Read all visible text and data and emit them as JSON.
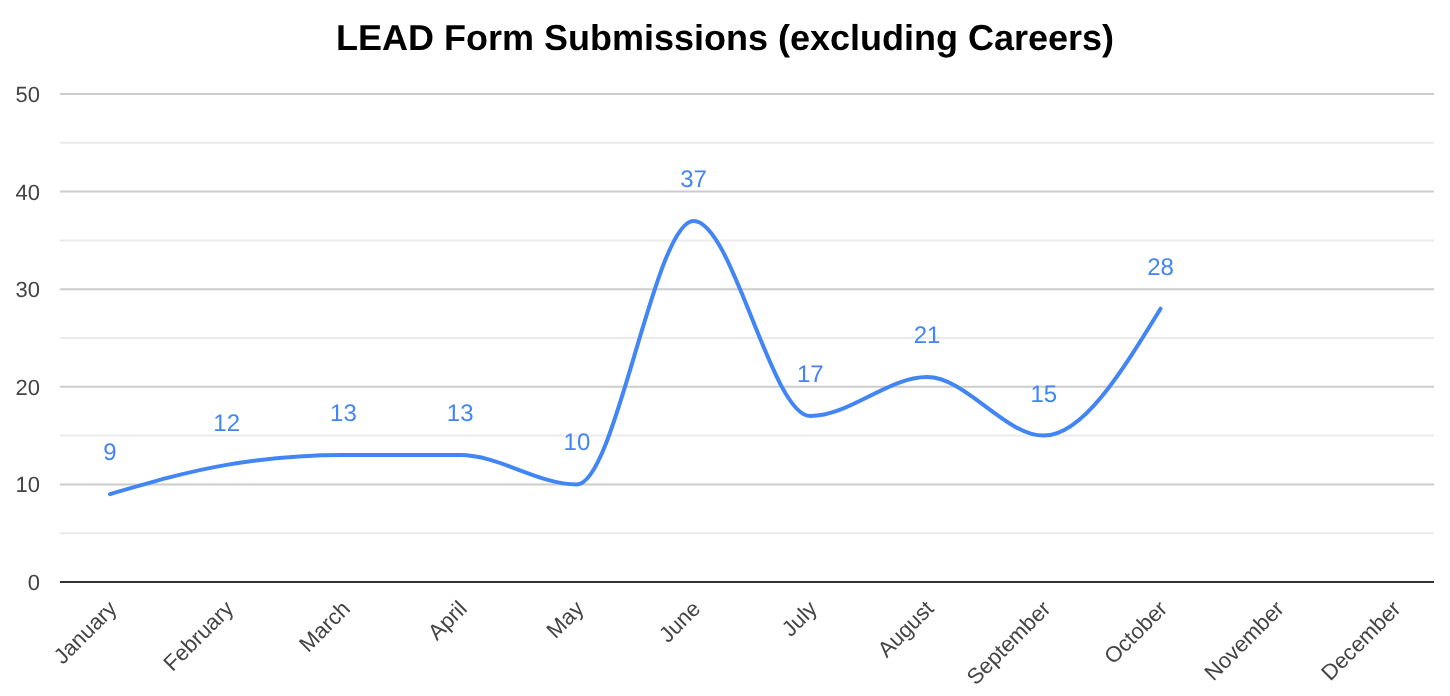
{
  "chart_data": {
    "type": "line",
    "title": "LEAD Form Submissions (excluding Careers)",
    "categories": [
      "January",
      "February",
      "March",
      "April",
      "May",
      "June",
      "July",
      "August",
      "September",
      "October",
      "November",
      "December"
    ],
    "series": [
      {
        "color": "#4285f4",
        "values": [
          9,
          12,
          13,
          13,
          10,
          37,
          17,
          21,
          15,
          28,
          null,
          null
        ]
      }
    ],
    "ylim": [
      0,
      50
    ],
    "yticks": [
      0,
      {
        "value": 5,
        "label": null
      },
      10,
      {
        "value": 15,
        "label": null
      },
      20,
      {
        "value": 25,
        "label": null
      },
      30,
      {
        "value": 35,
        "label": null
      },
      40,
      {
        "value": 45,
        "label": null
      },
      50
    ],
    "grid": "y",
    "marker": "none",
    "line_style": "solid",
    "data_labels": true
  }
}
